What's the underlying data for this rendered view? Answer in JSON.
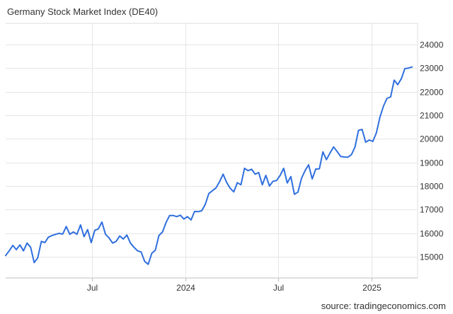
{
  "title": "Germany Stock Market Index (DE40)",
  "source": "source: tradingeconomics.com",
  "chart_data": {
    "type": "line",
    "title": "Germany Stock Market Index (DE40)",
    "xlabel": "",
    "ylabel": "",
    "ylim": [
      14100,
      24900
    ],
    "xlim": [
      "2023-01-13",
      "2025-04-01"
    ],
    "grid": true,
    "line_color": "#2f6fde",
    "y_ticks": [
      15000,
      16000,
      17000,
      18000,
      19000,
      20000,
      21000,
      22000,
      23000,
      24000
    ],
    "y_tick_labels": [
      "15000",
      "16000",
      "17000",
      "18000",
      "19000",
      "20000",
      "21000",
      "22000",
      "23000",
      "24000"
    ],
    "x_ticks": [
      "2023-07-01",
      "2024-01-01",
      "2024-07-01",
      "2025-01-01"
    ],
    "x_tick_labels": [
      "Jul",
      "2024",
      "Jul",
      "2025"
    ],
    "series": [
      {
        "x": [
          "2023-01-13",
          "2023-01-20",
          "2023-01-27",
          "2023-02-03",
          "2023-02-10",
          "2023-02-17",
          "2023-02-24",
          "2023-03-03",
          "2023-03-10",
          "2023-03-17",
          "2023-03-24",
          "2023-03-31",
          "2023-04-07",
          "2023-04-14",
          "2023-04-21",
          "2023-04-28",
          "2023-05-05",
          "2023-05-12",
          "2023-05-19",
          "2023-05-26",
          "2023-06-02",
          "2023-06-09",
          "2023-06-16",
          "2023-06-23",
          "2023-06-30",
          "2023-07-07",
          "2023-07-14",
          "2023-07-21",
          "2023-07-28",
          "2023-08-04",
          "2023-08-11",
          "2023-08-18",
          "2023-08-25",
          "2023-09-01",
          "2023-09-08",
          "2023-09-15",
          "2023-09-22",
          "2023-09-29",
          "2023-10-06",
          "2023-10-13",
          "2023-10-20",
          "2023-10-27",
          "2023-11-03",
          "2023-11-10",
          "2023-11-17",
          "2023-11-24",
          "2023-12-01",
          "2023-12-08",
          "2023-12-15",
          "2023-12-22",
          "2023-12-29",
          "2024-01-05",
          "2024-01-12",
          "2024-01-19",
          "2024-01-26",
          "2024-02-02",
          "2024-02-09",
          "2024-02-16",
          "2024-02-23",
          "2024-03-01",
          "2024-03-08",
          "2024-03-15",
          "2024-03-22",
          "2024-03-29",
          "2024-04-05",
          "2024-04-12",
          "2024-04-19",
          "2024-04-26",
          "2024-05-03",
          "2024-05-10",
          "2024-05-17",
          "2024-05-24",
          "2024-05-31",
          "2024-06-07",
          "2024-06-14",
          "2024-06-21",
          "2024-06-28",
          "2024-07-05",
          "2024-07-12",
          "2024-07-19",
          "2024-07-26",
          "2024-08-02",
          "2024-08-09",
          "2024-08-16",
          "2024-08-23",
          "2024-08-30",
          "2024-09-06",
          "2024-09-13",
          "2024-09-20",
          "2024-09-27",
          "2024-10-04",
          "2024-10-11",
          "2024-10-18",
          "2024-10-25",
          "2024-11-01",
          "2024-11-08",
          "2024-11-15",
          "2024-11-22",
          "2024-11-29",
          "2024-12-06",
          "2024-12-13",
          "2024-12-20",
          "2024-12-27",
          "2025-01-03",
          "2025-01-10",
          "2025-01-17",
          "2025-01-24",
          "2025-01-31",
          "2025-02-07",
          "2025-02-14",
          "2025-02-21",
          "2025-02-28",
          "2025-03-07",
          "2025-03-14",
          "2025-03-21"
        ],
        "values": [
          15050,
          15250,
          15480,
          15300,
          15500,
          15250,
          15580,
          15400,
          14750,
          14950,
          15650,
          15600,
          15830,
          15900,
          15950,
          15990,
          15960,
          16280,
          15950,
          16050,
          15950,
          16350,
          15850,
          16150,
          15600,
          16120,
          16180,
          16470,
          15950,
          15800,
          15580,
          15650,
          15880,
          15750,
          15920,
          15580,
          15400,
          15250,
          15200,
          14800,
          14680,
          15150,
          15280,
          15900,
          16050,
          16450,
          16750,
          16750,
          16700,
          16760,
          16600,
          16700,
          16560,
          16920,
          16910,
          16950,
          17220,
          17680,
          17800,
          17920,
          18180,
          18500,
          18150,
          17900,
          17750,
          18140,
          18050,
          18750,
          18650,
          18710,
          18500,
          18570,
          18050,
          18450,
          18000,
          18200,
          18230,
          18450,
          18750,
          18130,
          18400,
          17650,
          17740,
          18330,
          18650,
          18900,
          18300,
          18720,
          18730,
          19450,
          19120,
          19400,
          19660,
          19460,
          19250,
          19230,
          19220,
          19330,
          19650,
          20360,
          20400,
          19860,
          19950,
          19890,
          20250,
          20920,
          21390,
          21720,
          21780,
          22490,
          22300,
          22550,
          22980,
          23000,
          23050
        ]
      }
    ]
  }
}
